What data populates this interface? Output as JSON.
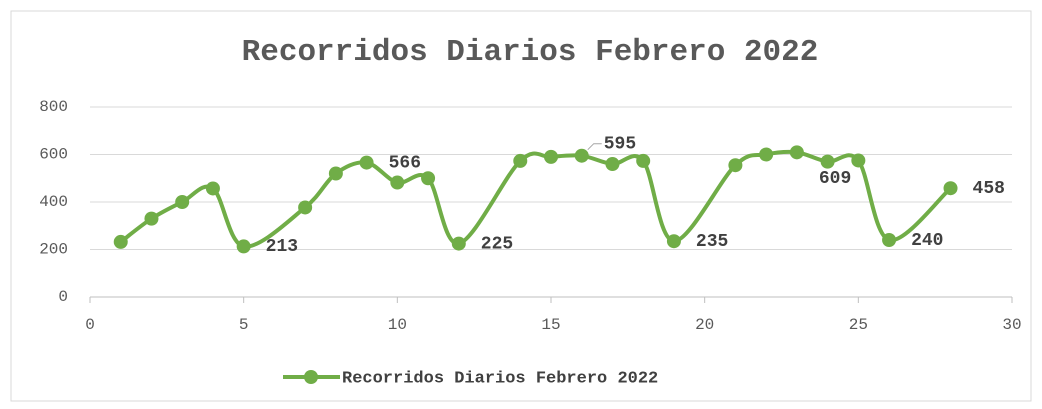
{
  "chart_data": {
    "type": "line",
    "title": "Recorridos Diarios Febrero 2022",
    "x": [
      1,
      2,
      3,
      4,
      5,
      7,
      8,
      9,
      10,
      11,
      12,
      14,
      15,
      16,
      17,
      18,
      19,
      21,
      22,
      23,
      24,
      25,
      26,
      28
    ],
    "series": [
      {
        "name": "Recorridos Diarios Febrero 2022",
        "color": "#70ad47",
        "values": [
          232,
          330,
          400,
          457,
          213,
          377,
          520,
          566,
          482,
          500,
          225,
          573,
          590,
          595,
          560,
          573,
          235,
          555,
          600,
          609,
          570,
          575,
          240,
          458
        ],
        "value_labels": [
          null,
          null,
          null,
          null,
          "213",
          null,
          null,
          "566",
          null,
          null,
          "225",
          null,
          null,
          "595",
          null,
          null,
          "235",
          null,
          null,
          "609",
          null,
          null,
          "240",
          "458"
        ]
      }
    ],
    "xlim": [
      0,
      30
    ],
    "xticks": [
      0,
      5,
      10,
      15,
      20,
      25,
      30
    ],
    "ylim": [
      0,
      800
    ],
    "yticks": [
      0,
      200,
      400,
      600,
      800
    ],
    "grid": true,
    "legend": "bottom"
  }
}
